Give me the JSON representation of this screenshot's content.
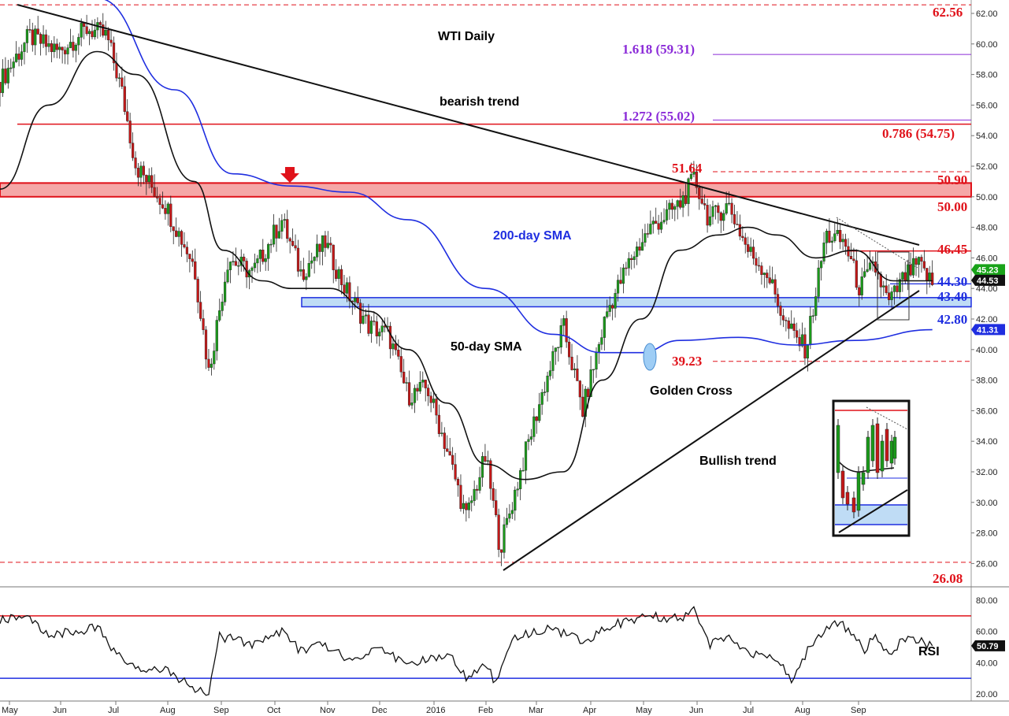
{
  "chart_data": [
    {
      "type": "candlestick",
      "title": "WTI Daily",
      "x_tick_labels": [
        "May",
        "Jun",
        "Jul",
        "Aug",
        "Sep",
        "Oct",
        "Nov",
        "Dec",
        "2016",
        "Feb",
        "Mar",
        "Apr",
        "May",
        "Jun",
        "Jul",
        "Aug",
        "Sep"
      ],
      "y_tick_labels": [
        "62.00",
        "60.00",
        "58.00",
        "56.00",
        "54.00",
        "52.00",
        "50.00",
        "48.00",
        "46.00",
        "44.00",
        "42.00",
        "40.00",
        "38.00",
        "36.00",
        "34.00",
        "32.00",
        "30.00",
        "28.00",
        "26.00"
      ],
      "ylim": [
        25.0,
        63.0
      ],
      "price_path": [
        {
          "t": 0,
          "p": 57.5
        },
        {
          "t": 0.03,
          "p": 60.5
        },
        {
          "t": 0.06,
          "p": 59.5
        },
        {
          "t": 0.09,
          "p": 61.0
        },
        {
          "t": 0.11,
          "p": 60.5
        },
        {
          "t": 0.125,
          "p": 57.0
        },
        {
          "t": 0.14,
          "p": 52.0
        },
        {
          "t": 0.17,
          "p": 49.5
        },
        {
          "t": 0.2,
          "p": 45.5
        },
        {
          "t": 0.215,
          "p": 38.5
        },
        {
          "t": 0.235,
          "p": 46.0
        },
        {
          "t": 0.26,
          "p": 45.0
        },
        {
          "t": 0.29,
          "p": 48.5
        },
        {
          "t": 0.31,
          "p": 45.0
        },
        {
          "t": 0.335,
          "p": 47.0
        },
        {
          "t": 0.355,
          "p": 44.0
        },
        {
          "t": 0.38,
          "p": 41.5
        },
        {
          "t": 0.4,
          "p": 41.0
        },
        {
          "t": 0.42,
          "p": 37.0
        },
        {
          "t": 0.44,
          "p": 37.5
        },
        {
          "t": 0.46,
          "p": 33.5
        },
        {
          "t": 0.48,
          "p": 29.0
        },
        {
          "t": 0.5,
          "p": 33.0
        },
        {
          "t": 0.515,
          "p": 27.0
        },
        {
          "t": 0.54,
          "p": 33.0
        },
        {
          "t": 0.56,
          "p": 37.5
        },
        {
          "t": 0.58,
          "p": 41.5
        },
        {
          "t": 0.6,
          "p": 36.0
        },
        {
          "t": 0.625,
          "p": 42.5
        },
        {
          "t": 0.65,
          "p": 46.0
        },
        {
          "t": 0.67,
          "p": 48.0
        },
        {
          "t": 0.7,
          "p": 49.5
        },
        {
          "t": 0.715,
          "p": 51.2
        },
        {
          "t": 0.73,
          "p": 48.5
        },
        {
          "t": 0.75,
          "p": 49.5
        },
        {
          "t": 0.77,
          "p": 46.5
        },
        {
          "t": 0.79,
          "p": 45.0
        },
        {
          "t": 0.81,
          "p": 41.5
        },
        {
          "t": 0.83,
          "p": 40.0
        },
        {
          "t": 0.85,
          "p": 47.5
        },
        {
          "t": 0.87,
          "p": 47.0
        },
        {
          "t": 0.885,
          "p": 44.0
        },
        {
          "t": 0.9,
          "p": 45.5
        },
        {
          "t": 0.915,
          "p": 43.0
        },
        {
          "t": 0.93,
          "p": 44.6
        },
        {
          "t": 0.945,
          "p": 45.6
        },
        {
          "t": 0.96,
          "p": 44.3
        }
      ],
      "series": [
        {
          "name": "200-day SMA",
          "color": "#1f2ee0",
          "path": [
            {
              "t": 0.1,
              "p": 63.0
            },
            {
              "t": 0.18,
              "p": 57.0
            },
            {
              "t": 0.24,
              "p": 51.5
            },
            {
              "t": 0.3,
              "p": 50.7
            },
            {
              "t": 0.36,
              "p": 50.3
            },
            {
              "t": 0.42,
              "p": 48.5
            },
            {
              "t": 0.5,
              "p": 44.0
            },
            {
              "t": 0.57,
              "p": 41.0
            },
            {
              "t": 0.62,
              "p": 39.8
            },
            {
              "t": 0.66,
              "p": 39.8
            },
            {
              "t": 0.7,
              "p": 40.6
            },
            {
              "t": 0.76,
              "p": 40.8
            },
            {
              "t": 0.82,
              "p": 40.3
            },
            {
              "t": 0.88,
              "p": 40.6
            },
            {
              "t": 0.96,
              "p": 41.3
            }
          ]
        },
        {
          "name": "50-day SMA",
          "color": "#111111",
          "path": [
            {
              "t": 0.0,
              "p": 50.5
            },
            {
              "t": 0.05,
              "p": 56.0
            },
            {
              "t": 0.1,
              "p": 59.5
            },
            {
              "t": 0.14,
              "p": 58.0
            },
            {
              "t": 0.2,
              "p": 51.0
            },
            {
              "t": 0.23,
              "p": 46.5
            },
            {
              "t": 0.27,
              "p": 44.5
            },
            {
              "t": 0.3,
              "p": 44.0
            },
            {
              "t": 0.34,
              "p": 44.0
            },
            {
              "t": 0.38,
              "p": 42.5
            },
            {
              "t": 0.42,
              "p": 40.0
            },
            {
              "t": 0.46,
              "p": 36.5
            },
            {
              "t": 0.5,
              "p": 32.5
            },
            {
              "t": 0.54,
              "p": 31.5
            },
            {
              "t": 0.58,
              "p": 32.0
            },
            {
              "t": 0.62,
              "p": 38.0
            },
            {
              "t": 0.66,
              "p": 42.0
            },
            {
              "t": 0.7,
              "p": 46.5
            },
            {
              "t": 0.74,
              "p": 47.5
            },
            {
              "t": 0.77,
              "p": 48.0
            },
            {
              "t": 0.8,
              "p": 47.5
            },
            {
              "t": 0.84,
              "p": 46.0
            },
            {
              "t": 0.88,
              "p": 46.5
            },
            {
              "t": 0.92,
              "p": 44.5
            },
            {
              "t": 0.96,
              "p": 44.5
            }
          ]
        }
      ],
      "levels": {
        "dashed_red": [
          {
            "value": 62.56,
            "label": "62.56"
          },
          {
            "value": 51.64,
            "label": "51.64"
          },
          {
            "value": 39.23,
            "label": "39.23"
          },
          {
            "value": 26.08,
            "label": "26.08"
          }
        ],
        "solid_red": [
          {
            "value": 50.9,
            "label": "50.90"
          },
          {
            "value": 50.0,
            "label": "50.00"
          },
          {
            "value": 46.45,
            "label": "46.45"
          },
          {
            "value": 54.75,
            "label": "0.786 (54.75)"
          }
        ],
        "fib_purple": [
          {
            "value": 59.31,
            "label": "1.618 (59.31)"
          },
          {
            "value": 55.02,
            "label": "1.272 (55.02)"
          }
        ],
        "blue": [
          {
            "value": 44.3,
            "label": "44.30"
          },
          {
            "value": 43.4,
            "label": "43.40"
          },
          {
            "value": 42.8,
            "label": "42.80"
          }
        ],
        "resistance_zone": [
          50.0,
          50.9
        ],
        "support_zone": [
          42.8,
          43.4
        ]
      },
      "price_badges": [
        {
          "value": 45.23,
          "label": "45.23",
          "color": "#19a319"
        },
        {
          "value": 44.53,
          "label": "44.53",
          "color": "#111111"
        },
        {
          "value": 41.31,
          "label": "41.31",
          "color": "#1f2ee0"
        }
      ],
      "annotations": {
        "bearish_trend": "bearish trend",
        "sma200": "200-day SMA",
        "sma50": "50-day SMA",
        "golden_cross": "Golden Cross",
        "bullish_trend": "Bullish trend"
      }
    },
    {
      "type": "line",
      "xlabel": "",
      "ylabel": "",
      "series_label": "RSI",
      "y_tick_labels": [
        "80.00",
        "60.00",
        "40.00",
        "20.00"
      ],
      "ylim": [
        17,
        85
      ],
      "overbought": 70,
      "oversold": 30,
      "last_value": 50.79,
      "last_label": "50.79",
      "path": [
        {
          "t": 0.0,
          "p": 68
        },
        {
          "t": 0.03,
          "p": 70
        },
        {
          "t": 0.05,
          "p": 58
        },
        {
          "t": 0.08,
          "p": 60
        },
        {
          "t": 0.1,
          "p": 63
        },
        {
          "t": 0.12,
          "p": 45
        },
        {
          "t": 0.14,
          "p": 35
        },
        {
          "t": 0.17,
          "p": 36
        },
        {
          "t": 0.2,
          "p": 24
        },
        {
          "t": 0.215,
          "p": 21
        },
        {
          "t": 0.225,
          "p": 57
        },
        {
          "t": 0.26,
          "p": 52
        },
        {
          "t": 0.29,
          "p": 60
        },
        {
          "t": 0.31,
          "p": 47
        },
        {
          "t": 0.33,
          "p": 53
        },
        {
          "t": 0.36,
          "p": 42
        },
        {
          "t": 0.39,
          "p": 50
        },
        {
          "t": 0.42,
          "p": 38
        },
        {
          "t": 0.46,
          "p": 46
        },
        {
          "t": 0.48,
          "p": 31
        },
        {
          "t": 0.5,
          "p": 40
        },
        {
          "t": 0.51,
          "p": 27
        },
        {
          "t": 0.53,
          "p": 56
        },
        {
          "t": 0.57,
          "p": 62
        },
        {
          "t": 0.6,
          "p": 53
        },
        {
          "t": 0.63,
          "p": 64
        },
        {
          "t": 0.67,
          "p": 70
        },
        {
          "t": 0.7,
          "p": 68
        },
        {
          "t": 0.715,
          "p": 73
        },
        {
          "t": 0.73,
          "p": 52
        },
        {
          "t": 0.75,
          "p": 56
        },
        {
          "t": 0.77,
          "p": 47
        },
        {
          "t": 0.8,
          "p": 42
        },
        {
          "t": 0.815,
          "p": 30
        },
        {
          "t": 0.84,
          "p": 56
        },
        {
          "t": 0.86,
          "p": 67
        },
        {
          "t": 0.88,
          "p": 58
        },
        {
          "t": 0.89,
          "p": 46
        },
        {
          "t": 0.9,
          "p": 58
        },
        {
          "t": 0.915,
          "p": 44
        },
        {
          "t": 0.93,
          "p": 56
        },
        {
          "t": 0.945,
          "p": 54
        },
        {
          "t": 0.96,
          "p": 51
        }
      ]
    }
  ],
  "colors": {
    "resistance_zone": "#f5a7a7",
    "support_zone": "#bfdcf5",
    "red_line": "#e0121a",
    "blue_line": "#1f2ee0",
    "purple": "#8b2bd8",
    "up_candle": "#1b9a1b",
    "down_candle": "#c41818"
  }
}
